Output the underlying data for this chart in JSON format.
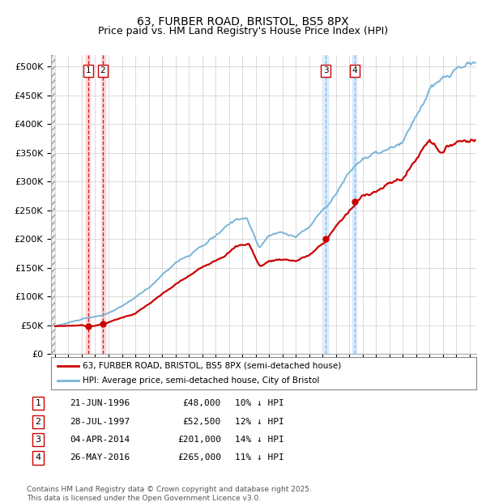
{
  "title": "63, FURBER ROAD, BRISTOL, BS5 8PX",
  "subtitle": "Price paid vs. HM Land Registry's House Price Index (HPI)",
  "title_fontsize": 10,
  "subtitle_fontsize": 9,
  "xlim_start": 1993.7,
  "xlim_end": 2025.5,
  "ylim_min": 0,
  "ylim_max": 520000,
  "yticks": [
    0,
    50000,
    100000,
    150000,
    200000,
    250000,
    300000,
    350000,
    400000,
    450000,
    500000
  ],
  "ytick_labels": [
    "£0",
    "£50K",
    "£100K",
    "£150K",
    "£200K",
    "£250K",
    "£300K",
    "£350K",
    "£400K",
    "£450K",
    "£500K"
  ],
  "background_color": "#ffffff",
  "grid_color": "#cccccc",
  "hpi_line_color": "#7ab4d8",
  "price_line_color": "#cc0000",
  "vline_color_red": "#cc0000",
  "vline_color_blue": "#7ab4d8",
  "marker_color": "#cc0000",
  "sale_dates": [
    1996.47,
    1997.58,
    2014.25,
    2016.41
  ],
  "sale_prices": [
    48000,
    52500,
    201000,
    265000
  ],
  "box_labels": [
    "1",
    "2",
    "3",
    "4"
  ],
  "legend_line1": "63, FURBER ROAD, BRISTOL, BS5 8PX (semi-detached house)",
  "legend_line2": "HPI: Average price, semi-detached house, City of Bristol",
  "table_rows": [
    {
      "num": "1",
      "date": "21-JUN-1996",
      "price": "£48,000",
      "hpi": "10% ↓ HPI"
    },
    {
      "num": "2",
      "date": "28-JUL-1997",
      "price": "£52,500",
      "hpi": "12% ↓ HPI"
    },
    {
      "num": "3",
      "date": "04-APR-2014",
      "price": "£201,000",
      "hpi": "14% ↓ HPI"
    },
    {
      "num": "4",
      "date": "26-MAY-2016",
      "price": "£265,000",
      "hpi": "11% ↓ HPI"
    }
  ],
  "footer": "Contains HM Land Registry data © Crown copyright and database right 2025.\nThis data is licensed under the Open Government Licence v3.0."
}
